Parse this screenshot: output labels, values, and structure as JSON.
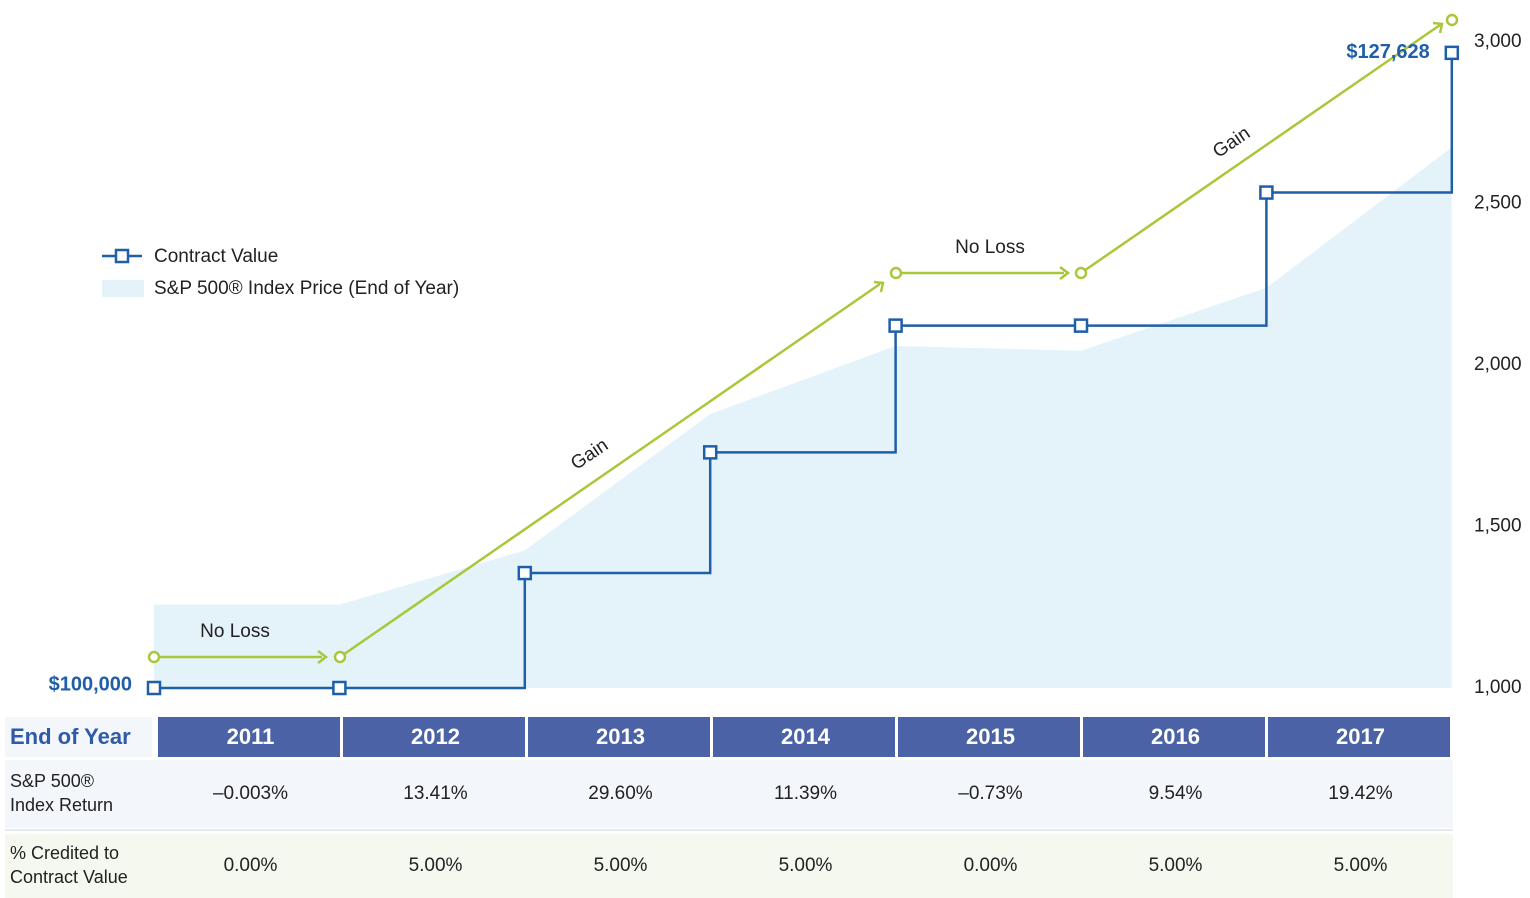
{
  "chart_data": {
    "type": "step-area",
    "categories": [
      null,
      "2011",
      "2012",
      "2013",
      "2014",
      "2015",
      "2016",
      "2017"
    ],
    "series": [
      {
        "name": "Contract Value",
        "color": "#1f5ea8",
        "axis": "y2",
        "values": [
          100000,
          100000,
          105000,
          110250,
          115763,
          115763,
          121551,
          127628
        ],
        "value_labels": [
          "$100,000",
          null,
          null,
          null,
          null,
          null,
          null,
          "$127,628"
        ]
      },
      {
        "name": "S&P 500® Index Price (End of Year)",
        "color": "#e4f3fa",
        "values": [
          1258,
          1258,
          1426,
          1848,
          2059,
          2044,
          2239,
          2674
        ]
      }
    ],
    "ylim": [
      1000,
      3000
    ],
    "yticks": [
      {
        "value": 1000,
        "label": "1,000"
      },
      {
        "value": 1500,
        "label": "1,500"
      },
      {
        "value": 2000,
        "label": "2,000"
      },
      {
        "value": 2500,
        "label": "2,500"
      },
      {
        "value": 3000,
        "label": "3,000"
      }
    ],
    "y2lim": [
      100000,
      128100
    ],
    "annotations": [
      "No Loss",
      "Gain",
      "No Loss",
      "Gain"
    ],
    "annotation_color": "#a8c83a"
  },
  "table": {
    "header": "End of Year",
    "rows": [
      {
        "label": "S&P 500® Index Return",
        "values": [
          "–0.003%",
          "13.41%",
          "29.60%",
          "11.39%",
          "–0.73%",
          "9.54%",
          "19.42%"
        ]
      },
      {
        "label": "% Credited to Contract Value",
        "values": [
          "0.00%",
          "5.00%",
          "5.00%",
          "5.00%",
          "0.00%",
          "5.00%",
          "5.00%"
        ]
      }
    ]
  }
}
